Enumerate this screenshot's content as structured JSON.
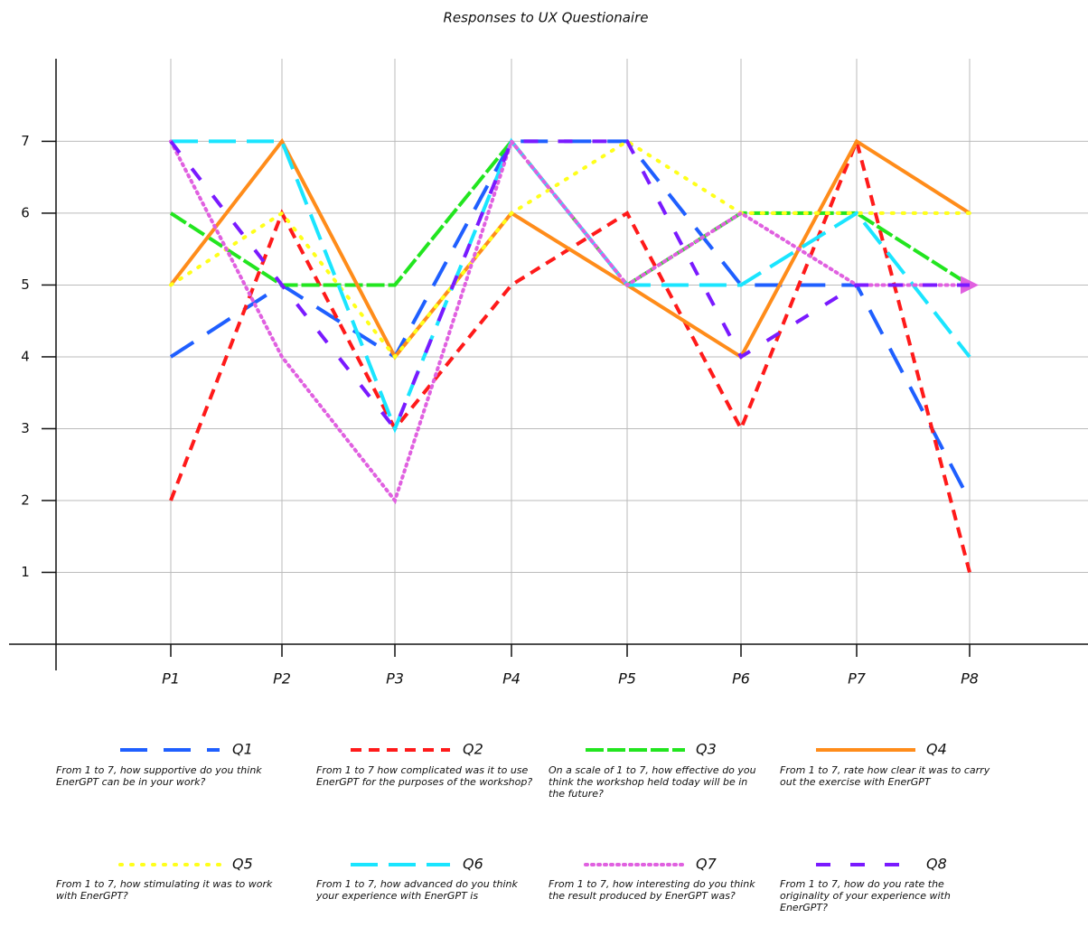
{
  "chart_data": {
    "type": "line",
    "title": "Responses to UX Questionaire",
    "categories": [
      "P1",
      "P2",
      "P3",
      "P4",
      "P5",
      "P6",
      "P7",
      "P8"
    ],
    "ylim": [
      0,
      8.2
    ],
    "yticks": [
      1,
      2,
      3,
      4,
      5,
      6,
      7
    ],
    "grid": true,
    "series": [
      {
        "name": "Q1",
        "color": "#1f5fff",
        "dash": "30,18",
        "description": "From 1 to 7, how supportive do you think EnerGPT can be in your work?",
        "values": [
          4,
          5,
          4,
          7,
          7,
          5,
          5,
          2
        ]
      },
      {
        "name": "Q2",
        "color": "#ff1a1a",
        "dash": "12,8",
        "description": "From 1 to 7 how complicated was it to use EnerGPT for the purposes of the workshop?",
        "values": [
          2,
          6,
          3,
          5,
          6,
          3,
          7,
          1
        ]
      },
      {
        "name": "Q3",
        "color": "#22e51f",
        "dash": "20,4",
        "description": "On a scale of 1 to 7, how effective do you think the workshop held today will be in the future?",
        "values": [
          6,
          5,
          5,
          7,
          5,
          6,
          6,
          5
        ]
      },
      {
        "name": "Q4",
        "color": "#ff8c1a",
        "dash": "none",
        "description": "From 1 to 7, rate how clear it was to carry out the exercise with EnerGPT",
        "values": [
          5,
          7,
          4,
          6,
          5,
          4,
          7,
          6
        ]
      },
      {
        "name": "Q5",
        "color": "#ffff1a",
        "dash": "2,10",
        "description": "From 1 to 7, how stimulating it was to work with EnerGPT?",
        "values": [
          5,
          6,
          4,
          6,
          7,
          6,
          6,
          6
        ]
      },
      {
        "name": "Q6",
        "color": "#1ae5ff",
        "dash": "30,12",
        "description": "From 1 to 7, how advanced do you think your experience with EnerGPT is",
        "values": [
          7,
          7,
          3,
          7,
          5,
          5,
          6,
          4
        ]
      },
      {
        "name": "Q7",
        "color": "#e060e0",
        "dash": "2,5",
        "end_marker": true,
        "description": "From 1 to 7, how interesting do you think the result produced by EnerGPT was?",
        "values": [
          7,
          4,
          2,
          7,
          5,
          6,
          5,
          5
        ]
      },
      {
        "name": "Q8",
        "color": "#7a1aff",
        "dash": "16,22",
        "description": "From 1 to 7, how do you rate the originality of your experience with EnerGPT?",
        "values": [
          7,
          5,
          3,
          7,
          7,
          4,
          5,
          5
        ]
      }
    ]
  }
}
